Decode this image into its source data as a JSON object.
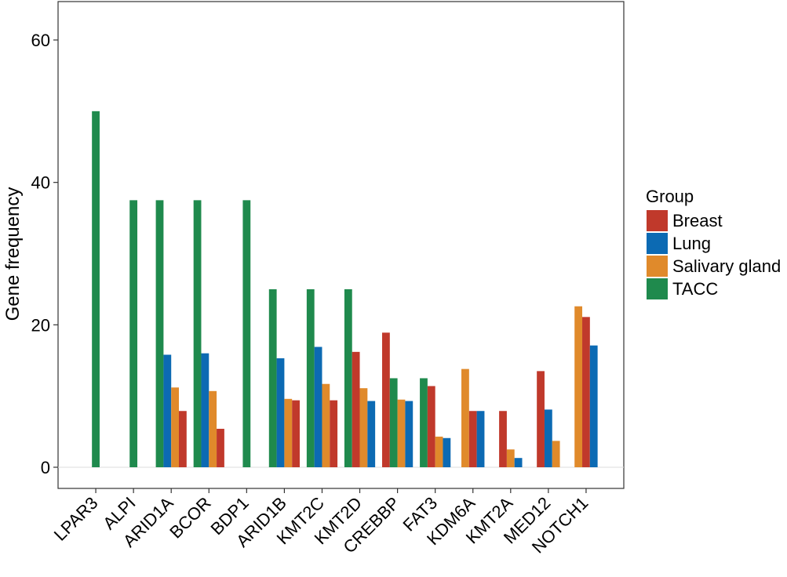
{
  "chart_data": {
    "type": "bar",
    "title": "",
    "xlabel": "",
    "ylabel": "Gene frequency",
    "ylim": [
      -3,
      65
    ],
    "yticks": [
      0,
      20,
      40,
      60
    ],
    "grid": false,
    "legend_position": "right",
    "legend_title": "Group",
    "categories": [
      "LPAR3",
      "ALPI",
      "ARID1A",
      "BCOR",
      "BDP1",
      "ARID1B",
      "KMT2C",
      "KMT2D",
      "CREBBP",
      "FAT3",
      "KDM6A",
      "KMT2A",
      "MED12",
      "NOTCH1"
    ],
    "series": [
      {
        "name": "TACC",
        "color": "#1f8a4d",
        "values": [
          50,
          37.5,
          37.5,
          37.5,
          37.5,
          25,
          25,
          25,
          12.5,
          12.5,
          null,
          null,
          null,
          null
        ]
      },
      {
        "name": "Lung",
        "color": "#0c6ab3",
        "values": [
          null,
          null,
          15.8,
          16,
          null,
          15.3,
          16.9,
          9.3,
          9.3,
          4.1,
          7.9,
          1.3,
          8.1,
          17.1
        ]
      },
      {
        "name": "Salivary gland",
        "color": "#e08a2b",
        "values": [
          null,
          null,
          11.2,
          10.7,
          null,
          9.6,
          11.7,
          11.1,
          9.5,
          4.3,
          13.8,
          2.5,
          3.7,
          22.6
        ]
      },
      {
        "name": "Breast",
        "color": "#c0392b",
        "values": [
          null,
          null,
          7.9,
          5.4,
          null,
          9.4,
          9.4,
          16.2,
          18.9,
          11.4,
          7.9,
          7.9,
          13.5,
          21.1
        ]
      }
    ],
    "bar_order": [
      [
        "TACC"
      ],
      [
        "TACC"
      ],
      [
        "TACC",
        "Lung",
        "Salivary gland",
        "Breast"
      ],
      [
        "TACC",
        "Lung",
        "Salivary gland",
        "Breast"
      ],
      [
        "TACC"
      ],
      [
        "TACC",
        "Lung",
        "Salivary gland",
        "Breast"
      ],
      [
        "TACC",
        "Lung",
        "Salivary gland",
        "Breast"
      ],
      [
        "TACC",
        "Breast",
        "Salivary gland",
        "Lung"
      ],
      [
        "Breast",
        "TACC",
        "Salivary gland",
        "Lung"
      ],
      [
        "TACC",
        "Breast",
        "Salivary gland",
        "Lung"
      ],
      [
        "Salivary gland",
        "Breast",
        "Lung"
      ],
      [
        "Breast",
        "Salivary gland",
        "Lung"
      ],
      [
        "Breast",
        "Lung",
        "Salivary gland"
      ],
      [
        "Salivary gland",
        "Breast",
        "Lung"
      ]
    ],
    "legend_order": [
      "Breast",
      "Lung",
      "Salivary gland",
      "TACC"
    ]
  }
}
